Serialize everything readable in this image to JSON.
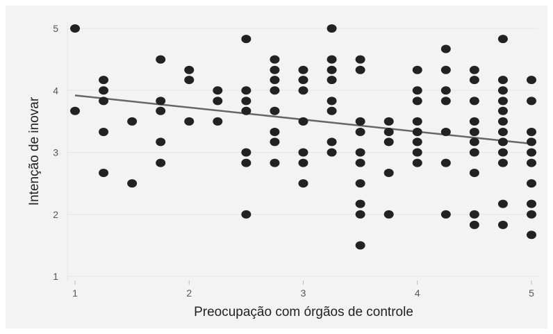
{
  "chart_data": {
    "type": "scatter",
    "title": "",
    "xlabel": "Preocupação com órgãos de controle",
    "ylabel": "Intenção de inovar",
    "xlim": [
      1,
      5
    ],
    "ylim": [
      1,
      5
    ],
    "xticks": [
      "1",
      "2",
      "3",
      "4",
      "5"
    ],
    "yticks": [
      "1",
      "2",
      "3",
      "4",
      "5"
    ],
    "grid": "horizontal",
    "legend": "none",
    "colors": {
      "point": "#222222",
      "trend": "#666666",
      "grid": "#e4e4e4",
      "background": "#f3f3f3"
    },
    "trend_line": {
      "x": [
        1,
        5
      ],
      "y": [
        3.92,
        3.14
      ]
    },
    "points": [
      {
        "x": 1,
        "y": 5
      },
      {
        "x": 1,
        "y": 3.67
      },
      {
        "x": 1.25,
        "y": 4.17
      },
      {
        "x": 1.25,
        "y": 4
      },
      {
        "x": 1.25,
        "y": 3.83
      },
      {
        "x": 1.25,
        "y": 3.33
      },
      {
        "x": 1.25,
        "y": 2.67
      },
      {
        "x": 1.5,
        "y": 3.5
      },
      {
        "x": 1.5,
        "y": 2.5
      },
      {
        "x": 1.75,
        "y": 4.5
      },
      {
        "x": 1.75,
        "y": 3.83
      },
      {
        "x": 1.75,
        "y": 3.67
      },
      {
        "x": 1.75,
        "y": 3.17
      },
      {
        "x": 1.75,
        "y": 2.83
      },
      {
        "x": 2,
        "y": 4.33
      },
      {
        "x": 2,
        "y": 4.17
      },
      {
        "x": 2,
        "y": 3.5
      },
      {
        "x": 2.25,
        "y": 4
      },
      {
        "x": 2.25,
        "y": 3.83
      },
      {
        "x": 2.25,
        "y": 3.5
      },
      {
        "x": 2.5,
        "y": 4.83
      },
      {
        "x": 2.5,
        "y": 4
      },
      {
        "x": 2.5,
        "y": 3.83
      },
      {
        "x": 2.5,
        "y": 3.67
      },
      {
        "x": 2.5,
        "y": 3
      },
      {
        "x": 2.5,
        "y": 2.83
      },
      {
        "x": 2.5,
        "y": 2
      },
      {
        "x": 2.75,
        "y": 4.5
      },
      {
        "x": 2.75,
        "y": 4.33
      },
      {
        "x": 2.75,
        "y": 4.17
      },
      {
        "x": 2.75,
        "y": 4
      },
      {
        "x": 2.75,
        "y": 3.67
      },
      {
        "x": 2.75,
        "y": 3.33
      },
      {
        "x": 2.75,
        "y": 3.17
      },
      {
        "x": 2.75,
        "y": 2.83
      },
      {
        "x": 3,
        "y": 4.33
      },
      {
        "x": 3,
        "y": 4.17
      },
      {
        "x": 3,
        "y": 4
      },
      {
        "x": 3,
        "y": 3.5
      },
      {
        "x": 3,
        "y": 3
      },
      {
        "x": 3,
        "y": 2.83
      },
      {
        "x": 3,
        "y": 2.5
      },
      {
        "x": 3.25,
        "y": 5
      },
      {
        "x": 3.25,
        "y": 4.5
      },
      {
        "x": 3.25,
        "y": 4.33
      },
      {
        "x": 3.25,
        "y": 4.17
      },
      {
        "x": 3.25,
        "y": 3.83
      },
      {
        "x": 3.25,
        "y": 3.67
      },
      {
        "x": 3.25,
        "y": 3.17
      },
      {
        "x": 3.25,
        "y": 3
      },
      {
        "x": 3.5,
        "y": 4.5
      },
      {
        "x": 3.5,
        "y": 4.33
      },
      {
        "x": 3.5,
        "y": 3.5
      },
      {
        "x": 3.5,
        "y": 3.33
      },
      {
        "x": 3.5,
        "y": 3
      },
      {
        "x": 3.5,
        "y": 2.83
      },
      {
        "x": 3.5,
        "y": 2.5
      },
      {
        "x": 3.5,
        "y": 2.17
      },
      {
        "x": 3.5,
        "y": 2
      },
      {
        "x": 3.5,
        "y": 1.5
      },
      {
        "x": 3.75,
        "y": 3.5
      },
      {
        "x": 3.75,
        "y": 3.33
      },
      {
        "x": 3.75,
        "y": 3.17
      },
      {
        "x": 3.75,
        "y": 2.67
      },
      {
        "x": 3.75,
        "y": 2
      },
      {
        "x": 4,
        "y": 4.33
      },
      {
        "x": 4,
        "y": 4
      },
      {
        "x": 4,
        "y": 3.83
      },
      {
        "x": 4,
        "y": 3.5
      },
      {
        "x": 4,
        "y": 3.33
      },
      {
        "x": 4,
        "y": 3.17
      },
      {
        "x": 4,
        "y": 3
      },
      {
        "x": 4,
        "y": 2.83
      },
      {
        "x": 4.25,
        "y": 4.67
      },
      {
        "x": 4.25,
        "y": 4.33
      },
      {
        "x": 4.25,
        "y": 4
      },
      {
        "x": 4.25,
        "y": 3.83
      },
      {
        "x": 4.25,
        "y": 3.33
      },
      {
        "x": 4.25,
        "y": 2.83
      },
      {
        "x": 4.25,
        "y": 2
      },
      {
        "x": 4.5,
        "y": 4.33
      },
      {
        "x": 4.5,
        "y": 4.17
      },
      {
        "x": 4.5,
        "y": 3.83
      },
      {
        "x": 4.5,
        "y": 3.5
      },
      {
        "x": 4.5,
        "y": 3.33
      },
      {
        "x": 4.5,
        "y": 3.17
      },
      {
        "x": 4.5,
        "y": 3
      },
      {
        "x": 4.5,
        "y": 2.67
      },
      {
        "x": 4.5,
        "y": 2
      },
      {
        "x": 4.5,
        "y": 1.83
      },
      {
        "x": 4.75,
        "y": 4.83
      },
      {
        "x": 4.75,
        "y": 4.17
      },
      {
        "x": 4.75,
        "y": 4
      },
      {
        "x": 4.75,
        "y": 3.83
      },
      {
        "x": 4.75,
        "y": 3.67
      },
      {
        "x": 4.75,
        "y": 3.5
      },
      {
        "x": 4.75,
        "y": 3.33
      },
      {
        "x": 4.75,
        "y": 3.17
      },
      {
        "x": 4.75,
        "y": 3
      },
      {
        "x": 4.75,
        "y": 2.83
      },
      {
        "x": 4.75,
        "y": 2.17
      },
      {
        "x": 4.75,
        "y": 1.83
      },
      {
        "x": 5,
        "y": 4.17
      },
      {
        "x": 5,
        "y": 3.83
      },
      {
        "x": 5,
        "y": 3.33
      },
      {
        "x": 5,
        "y": 3.17
      },
      {
        "x": 5,
        "y": 3
      },
      {
        "x": 5,
        "y": 2.83
      },
      {
        "x": 5,
        "y": 2.5
      },
      {
        "x": 5,
        "y": 2.17
      },
      {
        "x": 5,
        "y": 2
      },
      {
        "x": 5,
        "y": 1.67
      }
    ]
  }
}
